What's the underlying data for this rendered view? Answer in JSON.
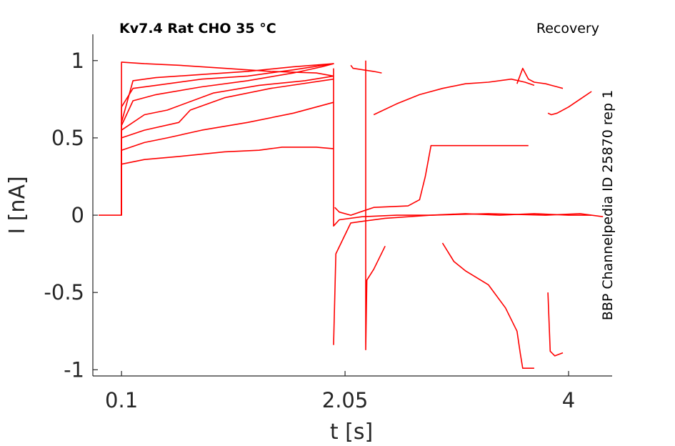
{
  "chart_data": {
    "type": "line",
    "title": "Kv7.4  Rat  CHO  35 °C",
    "protocol": "Recovery",
    "side_label": "BBP Channelpedia ID 25870 rep 1",
    "xlabel": "t [s]",
    "ylabel": "I [nA]",
    "xlim": [
      -0.15,
      4.38
    ],
    "ylim": [
      -1.04,
      1.17
    ],
    "xticks": [
      0.1,
      2.05,
      4
    ],
    "xtick_labels": [
      "0.1",
      "2.05",
      "4"
    ],
    "yticks": [
      1,
      0.5,
      0,
      -0.5,
      -1
    ],
    "ytick_labels": [
      "1",
      "0.5",
      "0",
      "-0.5",
      "-1"
    ],
    "grid": false,
    "line_color": "#ff0000",
    "series": [
      {
        "x": [
          -0.1,
          0.1,
          0.1,
          0.2,
          0.4,
          0.8,
          1.2,
          1.6,
          1.85,
          1.95,
          1.6,
          1.2,
          0.8,
          0.4,
          0.2,
          0.1,
          0.1,
          -0.1
        ],
        "y": [
          0,
          0,
          0.58,
          0.74,
          0.78,
          0.83,
          0.87,
          0.92,
          0.96,
          0.98,
          0.96,
          0.93,
          0.91,
          0.89,
          0.87,
          0.6,
          0,
          0
        ]
      },
      {
        "x": [
          0.1,
          0.1,
          0.2,
          0.4,
          0.8,
          1.2,
          1.6,
          1.95
        ],
        "y": [
          0,
          0.7,
          0.82,
          0.84,
          0.88,
          0.9,
          0.94,
          0.98
        ]
      },
      {
        "x": [
          0.1,
          0.1,
          0.3,
          0.6,
          1.0,
          1.4,
          1.8,
          1.95
        ],
        "y": [
          0,
          0.99,
          0.98,
          0.97,
          0.95,
          0.93,
          0.92,
          0.9
        ]
      },
      {
        "x": [
          0.1,
          0.1,
          0.3,
          0.5,
          0.9,
          1.3,
          1.7,
          1.95
        ],
        "y": [
          0,
          0.55,
          0.65,
          0.68,
          0.79,
          0.84,
          0.87,
          0.9
        ]
      },
      {
        "x": [
          0.1,
          0.1,
          0.3,
          0.6,
          0.7,
          1.0,
          1.4,
          1.95
        ],
        "y": [
          0,
          0.5,
          0.55,
          0.6,
          0.68,
          0.76,
          0.82,
          0.88
        ]
      },
      {
        "x": [
          0.1,
          0.1,
          0.3,
          0.5,
          0.8,
          1.2,
          1.6,
          1.95
        ],
        "y": [
          0,
          0.42,
          0.47,
          0.5,
          0.55,
          0.6,
          0.66,
          0.73
        ]
      },
      {
        "x": [
          0.1,
          0.1,
          0.3,
          0.6,
          1.0,
          1.3,
          1.5,
          1.8,
          1.95
        ],
        "y": [
          0,
          0.33,
          0.36,
          0.38,
          0.41,
          0.42,
          0.44,
          0.44,
          0.43
        ]
      },
      {
        "x": [
          1.95,
          1.95,
          2.0,
          2.2,
          2.5,
          2.8,
          3.1,
          3.4,
          3.7,
          4.0,
          4.2
        ],
        "y": [
          0.95,
          -0.07,
          -0.03,
          -0.01,
          0.0,
          0.0,
          0.01,
          0.0,
          0.01,
          0.0,
          0.0
        ]
      },
      {
        "x": [
          1.95,
          1.97,
          2.1,
          2.4,
          2.8,
          3.3,
          3.8,
          4.1,
          4.2
        ],
        "y": [
          -0.84,
          -0.25,
          -0.05,
          -0.02,
          0.0,
          0.01,
          0.0,
          0.01,
          0.0
        ]
      },
      {
        "x": [
          1.96,
          2.0,
          2.1,
          2.3,
          2.6,
          2.7,
          2.75,
          2.8,
          3.0,
          3.5,
          3.65
        ],
        "y": [
          0.05,
          0.02,
          0.0,
          0.05,
          0.06,
          0.1,
          0.25,
          0.45,
          0.45,
          0.45,
          0.45
        ]
      },
      {
        "x": [
          2.23,
          2.23,
          2.24,
          2.3,
          2.4
        ],
        "y": [
          1.0,
          -0.87,
          -0.42,
          -0.35,
          -0.2
        ]
      },
      {
        "x": [
          2.1,
          2.12,
          2.3,
          2.37
        ],
        "y": [
          0.97,
          0.95,
          0.93,
          0.92
        ]
      },
      {
        "x": [
          2.3,
          2.5,
          2.7,
          2.9,
          3.1,
          3.3,
          3.5,
          3.62,
          3.7
        ],
        "y": [
          0.65,
          0.72,
          0.78,
          0.82,
          0.85,
          0.86,
          0.88,
          0.86,
          0.84
        ]
      },
      {
        "x": [
          2.9,
          3.0,
          3.1,
          3.3,
          3.45,
          3.55,
          3.58,
          3.6,
          3.7
        ],
        "y": [
          -0.18,
          -0.3,
          -0.36,
          -0.45,
          -0.6,
          -0.75,
          -0.9,
          -0.99,
          -0.99
        ]
      },
      {
        "x": [
          3.55,
          3.6,
          3.65,
          3.7,
          3.8,
          3.85,
          3.9,
          3.95
        ],
        "y": [
          0.85,
          0.95,
          0.88,
          0.86,
          0.85,
          0.84,
          0.83,
          0.82
        ]
      },
      {
        "x": [
          3.82,
          3.85,
          3.9,
          4.0,
          4.1,
          4.2
        ],
        "y": [
          0.66,
          0.65,
          0.66,
          0.7,
          0.75,
          0.8
        ]
      },
      {
        "x": [
          3.82,
          3.84,
          3.88,
          3.95
        ],
        "y": [
          -0.5,
          -0.88,
          -0.91,
          -0.89
        ]
      },
      {
        "x": [
          4.2,
          4.3
        ],
        "y": [
          0.0,
          -0.01
        ]
      }
    ]
  }
}
